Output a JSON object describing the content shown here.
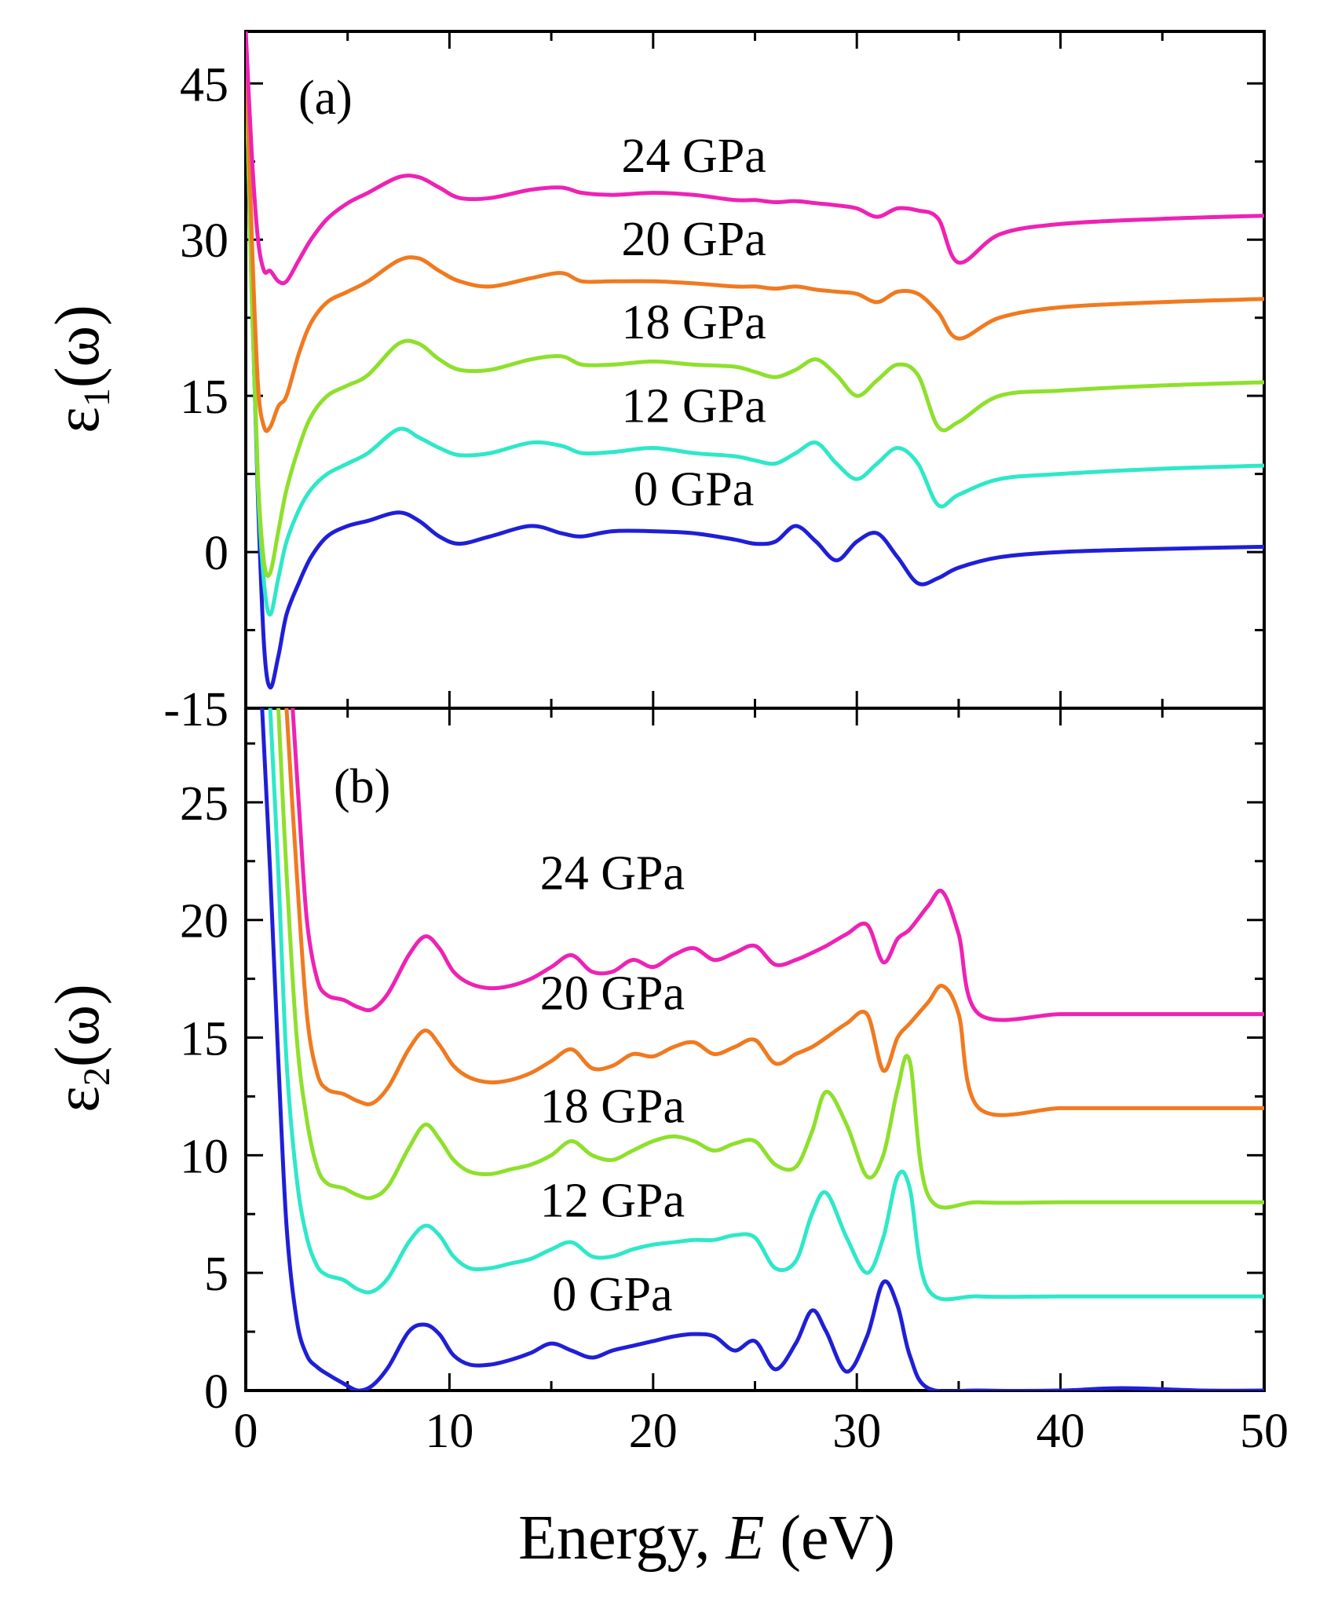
{
  "chart_data": [
    {
      "panel": "(a)",
      "type": "line",
      "ylabel": "ε1(ω)",
      "ylabel_main": "ε",
      "ylabel_sub": "1",
      "ylabel_tail": "(ω)",
      "xlim": [
        0,
        50
      ],
      "ylim": [
        -15,
        50
      ],
      "yticks": [
        -15,
        0,
        15,
        30,
        45
      ],
      "ytick_labels": [
        "-15",
        "0",
        "15",
        "30",
        "45"
      ],
      "series": [
        {
          "name": "0 GPa",
          "color": "#1f1fd8",
          "label_at": [
            22,
            4.5
          ],
          "x": [
            0,
            0.3,
            0.6,
            0.9,
            1.2,
            1.6,
            2.0,
            2.6,
            3.2,
            4,
            5,
            6,
            7.5,
            8.5,
            9.5,
            10.5,
            12,
            14,
            15.5,
            16.5,
            18,
            20,
            22,
            24,
            25,
            26,
            27,
            28,
            29,
            30,
            31,
            32,
            33,
            34,
            35,
            37,
            40,
            45,
            50
          ],
          "y": [
            48,
            25,
            5,
            -9,
            -13,
            -10,
            -6,
            -3,
            -0.5,
            1.5,
            2.5,
            3,
            3.8,
            3,
            1.5,
            0.8,
            1.5,
            2.5,
            1.8,
            1.5,
            2,
            2,
            1.8,
            1.2,
            0.8,
            1,
            2.5,
            1,
            -0.8,
            1,
            1.8,
            -0.5,
            -3,
            -2.5,
            -1.5,
            -0.5,
            0,
            0.3,
            0.5
          ]
        },
        {
          "name": "12 GPa",
          "color": "#2ee8c8",
          "label_at": [
            22,
            12.5
          ],
          "x": [
            0,
            0.3,
            0.6,
            0.9,
            1.2,
            1.6,
            2.0,
            2.6,
            3.2,
            4,
            5,
            6,
            7.5,
            8.5,
            9.5,
            10.5,
            12,
            14,
            15.5,
            16.5,
            18,
            20,
            22,
            24,
            25,
            26,
            27,
            28,
            29,
            30,
            31,
            32,
            33,
            34,
            35,
            37,
            40,
            45,
            50
          ],
          "y": [
            48,
            24,
            6,
            -3,
            -6,
            -2.5,
            1,
            4,
            6,
            7.5,
            8.5,
            9.5,
            11.8,
            11,
            10,
            9.3,
            9.5,
            10.5,
            10.2,
            9.5,
            9.6,
            10,
            9.5,
            9.2,
            8.8,
            8.5,
            9.5,
            10.5,
            8.5,
            7,
            8.5,
            10,
            8.5,
            4.5,
            5.5,
            7,
            7.5,
            8,
            8.3
          ]
        },
        {
          "name": "18 GPa",
          "color": "#8ee02c",
          "label_at": [
            22,
            20.5
          ],
          "x": [
            0,
            0.3,
            0.6,
            0.9,
            1.2,
            1.6,
            2.0,
            2.6,
            3.2,
            4,
            5,
            6,
            7.5,
            8.5,
            9.5,
            10.5,
            12,
            14,
            15.5,
            16.5,
            18,
            20,
            22,
            24,
            25,
            26,
            27,
            28,
            29,
            30,
            31,
            32,
            33,
            34,
            35,
            37,
            40,
            45,
            50
          ],
          "y": [
            48,
            24,
            7,
            -1,
            -2,
            2,
            6,
            10,
            13,
            15,
            16,
            17,
            20,
            20,
            18.5,
            17.5,
            17.5,
            18.5,
            18.8,
            18,
            18,
            18.3,
            18,
            17.8,
            17.3,
            16.8,
            17.5,
            18.5,
            17,
            15,
            16.5,
            18,
            17,
            12,
            12.5,
            15,
            15.5,
            16,
            16.3
          ]
        },
        {
          "name": "20 GPa",
          "color": "#f07a20",
          "label_at": [
            22,
            28.5
          ],
          "x": [
            0,
            0.3,
            0.6,
            0.9,
            1.2,
            1.6,
            2.0,
            2.6,
            3.2,
            4,
            5,
            6,
            7.5,
            8.5,
            9.5,
            10.5,
            12,
            14,
            15.5,
            16.5,
            18,
            20,
            22,
            24,
            25,
            26,
            27,
            28,
            29,
            30,
            31,
            32,
            33,
            34,
            35,
            37,
            40,
            45,
            50
          ],
          "y": [
            49,
            30,
            16,
            12,
            12,
            14,
            15,
            19,
            22,
            24,
            25,
            26,
            28,
            28.2,
            27,
            26,
            25.5,
            26.3,
            26.8,
            26,
            26,
            26,
            25.8,
            25.5,
            25.5,
            25.3,
            25.5,
            25.2,
            25,
            24.8,
            24,
            25,
            24.8,
            23,
            20.5,
            22.5,
            23.5,
            24,
            24.3
          ]
        },
        {
          "name": "24 GPa",
          "color": "#ee22b4",
          "label_at": [
            22,
            36.5
          ],
          "x": [
            0,
            0.3,
            0.6,
            0.9,
            1.2,
            1.6,
            2.0,
            2.6,
            3.2,
            4,
            5,
            6,
            7.5,
            8.5,
            9.5,
            10.5,
            12,
            14,
            15.5,
            16.5,
            18,
            20,
            22,
            24,
            25,
            26,
            27,
            28,
            29,
            30,
            31,
            32,
            33,
            34,
            35,
            37,
            40,
            45,
            50
          ],
          "y": [
            50,
            38,
            30,
            27,
            27,
            26,
            26,
            28,
            30,
            32,
            33.5,
            34.5,
            36,
            36,
            35,
            34,
            34,
            34.8,
            35,
            34.5,
            34.3,
            34.5,
            34.3,
            33.8,
            33.8,
            33.6,
            33.7,
            33.5,
            33.3,
            33,
            32.2,
            33,
            32.8,
            32,
            27.8,
            30.5,
            31.5,
            32,
            32.3
          ]
        }
      ]
    },
    {
      "panel": "(b)",
      "type": "line",
      "xlabel": "Energy, E (eV)",
      "xlabel_pre": "Energy, ",
      "xlabel_var": "E",
      "xlabel_post": " (eV)",
      "ylabel": "ε2(ω)",
      "ylabel_main": "ε",
      "ylabel_sub": "2",
      "ylabel_tail": "(ω)",
      "xlim": [
        0,
        50
      ],
      "ylim": [
        0,
        29
      ],
      "xticks": [
        0,
        10,
        20,
        30,
        40,
        50
      ],
      "xtick_labels": [
        "0",
        "10",
        "20",
        "30",
        "40",
        "50"
      ],
      "yticks": [
        0,
        5,
        10,
        15,
        20,
        25
      ],
      "ytick_labels": [
        "0",
        "5",
        "10",
        "15",
        "20",
        "25"
      ],
      "series": [
        {
          "name": "0 GPa",
          "color": "#1f1fd8",
          "label_at": [
            18,
            3.4
          ],
          "x": [
            0.8,
            1.2,
            1.6,
            2.0,
            2.5,
            3.0,
            3.5,
            4.0,
            4.8,
            5.5,
            6.2,
            7,
            8,
            8.8,
            9.5,
            10.2,
            11,
            12,
            13,
            14,
            15,
            16,
            17,
            18,
            19,
            20,
            21,
            22,
            23,
            24,
            25,
            26,
            27,
            27.8,
            28.5,
            29.5,
            30.5,
            31.3,
            32,
            32.6,
            33.5,
            36,
            40,
            43,
            47,
            50
          ],
          "y": [
            29,
            22,
            14,
            7,
            3,
            1.5,
            1,
            0.7,
            0.3,
            0,
            0.2,
            1,
            2.5,
            2.8,
            2.4,
            1.5,
            1.1,
            1.1,
            1.3,
            1.6,
            2,
            1.7,
            1.4,
            1.7,
            1.9,
            2.1,
            2.3,
            2.4,
            2.3,
            1.7,
            2.1,
            0.9,
            2,
            3.4,
            2.5,
            0.8,
            2.3,
            4.6,
            3.6,
            1.5,
            0.1,
            0,
            0,
            0.1,
            0,
            0
          ]
        },
        {
          "name": "12 GPa",
          "color": "#2ee8c8",
          "label_at": [
            18,
            7.4
          ],
          "x": [
            1.2,
            1.6,
            2.0,
            2.5,
            3.0,
            3.5,
            4.0,
            4.8,
            5.5,
            6.2,
            7,
            8,
            8.8,
            9.5,
            10.2,
            11,
            12,
            13,
            14,
            15,
            16,
            17,
            18,
            19,
            20,
            21,
            22,
            23,
            24,
            25,
            26,
            27,
            27.8,
            28.5,
            29.5,
            30.5,
            31.3,
            32,
            32.6,
            33.5,
            36,
            40,
            43,
            47,
            50
          ],
          "y": [
            29,
            22,
            14,
            9,
            6.5,
            5.3,
            4.9,
            4.7,
            4.3,
            4.2,
            4.8,
            6.3,
            7,
            6.6,
            5.7,
            5.2,
            5.2,
            5.4,
            5.6,
            6,
            6.3,
            5.7,
            5.7,
            6,
            6.2,
            6.3,
            6.4,
            6.4,
            6.6,
            6.5,
            5.2,
            5.5,
            7.5,
            8.4,
            6.5,
            5,
            6.5,
            9.1,
            8.6,
            4.3,
            4,
            4,
            4,
            4,
            4
          ]
        },
        {
          "name": "18 GPa",
          "color": "#8ee02c",
          "label_at": [
            18,
            11.4
          ],
          "x": [
            1.6,
            2.0,
            2.5,
            3.0,
            3.5,
            4.0,
            4.8,
            5.5,
            6.2,
            7,
            8,
            8.8,
            9.5,
            10.2,
            11,
            12,
            13,
            14,
            15,
            16,
            17,
            18,
            19,
            20,
            21,
            22,
            23,
            24,
            25,
            26,
            27,
            27.8,
            28.5,
            29.5,
            30.5,
            31.3,
            32,
            32.6,
            33.5,
            36,
            40,
            43,
            47,
            50
          ],
          "y": [
            29,
            22,
            15,
            11.5,
            9.5,
            8.8,
            8.6,
            8.3,
            8.2,
            8.7,
            10.3,
            11.3,
            10.7,
            9.8,
            9.3,
            9.2,
            9.4,
            9.6,
            10,
            10.6,
            10,
            9.8,
            10.2,
            10.6,
            10.8,
            10.6,
            10.2,
            10.5,
            10.6,
            9.6,
            9.5,
            11,
            12.7,
            11.3,
            9.1,
            10,
            12.8,
            14,
            8.3,
            8,
            8,
            8,
            8,
            8
          ]
        },
        {
          "name": "20 GPa",
          "color": "#f07a20",
          "label_at": [
            18,
            16.2
          ],
          "x": [
            2.0,
            2.5,
            3.0,
            3.5,
            4.0,
            4.8,
            5.5,
            6.2,
            7,
            8,
            8.8,
            9.5,
            10.2,
            11,
            12,
            13,
            14,
            15,
            16,
            17,
            18,
            19,
            20,
            21,
            22,
            23,
            24,
            25,
            26,
            27,
            27.8,
            28.5,
            29.5,
            30.5,
            31.3,
            32,
            32.6,
            33.5,
            34.2,
            35,
            36,
            40,
            43,
            47,
            50
          ],
          "y": [
            29,
            22,
            16,
            13.5,
            12.8,
            12.6,
            12.3,
            12.2,
            12.9,
            14.5,
            15.3,
            14.7,
            13.8,
            13.3,
            13.1,
            13.2,
            13.5,
            14,
            14.5,
            13.7,
            13.8,
            14.3,
            14.2,
            14.6,
            14.8,
            14.3,
            14.6,
            14.9,
            13.9,
            14.3,
            14.6,
            15,
            15.6,
            16,
            13.6,
            15,
            15.6,
            16.5,
            17.2,
            16,
            12,
            12,
            12,
            12,
            12
          ]
        },
        {
          "name": "24 GPa",
          "color": "#ee22b4",
          "label_at": [
            18,
            21.3
          ],
          "x": [
            2.3,
            2.6,
            3.0,
            3.5,
            4.0,
            4.8,
            5.5,
            6.2,
            7,
            8,
            8.8,
            9.5,
            10.2,
            11,
            12,
            13,
            14,
            15,
            16,
            17,
            18,
            19,
            20,
            21,
            22,
            23,
            24,
            25,
            26,
            27,
            27.8,
            28.5,
            29.5,
            30.5,
            31.3,
            32,
            32.6,
            33.5,
            34.2,
            35,
            36,
            40,
            43,
            47,
            50
          ],
          "y": [
            29,
            25,
            20,
            17.5,
            16.8,
            16.6,
            16.3,
            16.2,
            16.9,
            18.5,
            19.3,
            18.8,
            17.8,
            17.3,
            17.1,
            17.2,
            17.5,
            18,
            18.5,
            17.8,
            17.8,
            18.3,
            18,
            18.5,
            18.8,
            18.3,
            18.6,
            18.9,
            18.1,
            18.3,
            18.6,
            18.9,
            19.4,
            19.8,
            18.2,
            19.2,
            19.6,
            20.6,
            21.2,
            19.4,
            16,
            16,
            16,
            16,
            16
          ]
        }
      ]
    }
  ]
}
